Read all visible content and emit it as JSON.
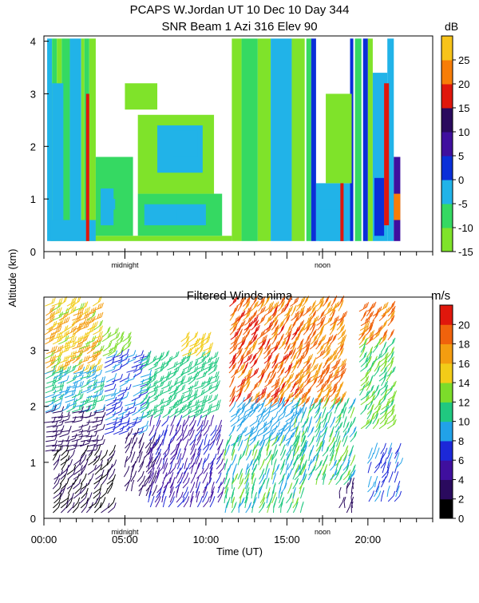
{
  "header": {
    "title_line1": "PCAPS W.Jordan UT  10 Dec 10 Day 344",
    "title_line2": "SNR Beam 1 Azi 316 Elev 90"
  },
  "shared_axes": {
    "ylabel": "Altitude (km)",
    "xlabel": "Time (UT)",
    "xtick_labels": [
      "00:00",
      "05:00",
      "10:00",
      "15:00",
      "20:00"
    ],
    "xticks_hours": [
      0,
      5,
      10,
      15,
      20
    ],
    "xlim_hours": [
      0,
      24
    ],
    "annotations": [
      {
        "label": "midnight",
        "hour": 5.0
      },
      {
        "label": "noon",
        "hour": 17.2
      }
    ]
  },
  "chart_data": [
    {
      "type": "heatmap",
      "title": "SNR Beam 1 Azi 316 Elev 90",
      "ylabel": "Altitude (km)",
      "ylim": [
        0,
        4.1
      ],
      "ytick_labels": [
        "0",
        "1",
        "2",
        "3",
        "4"
      ],
      "yticks": [
        0,
        1,
        2,
        3,
        4
      ],
      "colorbar": {
        "unit": "dB",
        "range": [
          -15,
          30
        ],
        "tick_labels": [
          "-15",
          "-10",
          "-5",
          "0",
          "5",
          "10",
          "15",
          "20",
          "25"
        ],
        "ticks": [
          -15,
          -10,
          -5,
          0,
          5,
          10,
          15,
          20,
          25
        ],
        "colors": [
          "#7fe32a",
          "#35d962",
          "#21b3e8",
          "#0a2fd8",
          "#3f0f9e",
          "#2a0a5e",
          "#e0170c",
          "#f77d08",
          "#f7c31a"
        ]
      },
      "columns": [
        {
          "start": 0.2,
          "end": 0.5,
          "value": -2
        },
        {
          "start": 0.5,
          "end": 0.8,
          "value": -6
        },
        {
          "start": 0.8,
          "end": 1.1,
          "value": -12
        },
        {
          "start": 1.1,
          "end": 1.6,
          "value": -8
        },
        {
          "start": 1.6,
          "end": 2.3,
          "value": -4
        },
        {
          "start": 2.3,
          "end": 2.5,
          "value": -11
        },
        {
          "start": 2.5,
          "end": 2.8,
          "value": -7
        },
        {
          "start": 2.8,
          "end": 3.2,
          "value": -13
        },
        {
          "start": 11.6,
          "end": 12.2,
          "value": -12
        },
        {
          "start": 12.2,
          "end": 13.2,
          "value": -6
        },
        {
          "start": 13.2,
          "end": 14.0,
          "value": -12
        },
        {
          "start": 14.0,
          "end": 15.3,
          "value": -5
        },
        {
          "start": 15.3,
          "end": 16.1,
          "value": -11
        },
        {
          "start": 16.2,
          "end": 16.5,
          "value": -6
        },
        {
          "start": 16.5,
          "end": 16.8,
          "value": 0
        },
        {
          "start": 18.9,
          "end": 19.1,
          "value": 0
        },
        {
          "start": 19.2,
          "end": 19.6,
          "value": -6
        },
        {
          "start": 19.7,
          "end": 20.0,
          "value": 2
        },
        {
          "start": 20.0,
          "end": 20.3,
          "value": -12
        },
        {
          "start": 21.2,
          "end": 21.6,
          "value": -5
        }
      ],
      "features": [
        {
          "start": 0.4,
          "end": 3.2,
          "bottom": 0.2,
          "top": 0.6,
          "value": -1
        },
        {
          "start": 0.5,
          "end": 1.2,
          "bottom": 0.6,
          "top": 3.2,
          "value": -3
        },
        {
          "start": 2.6,
          "end": 2.8,
          "bottom": 0.2,
          "top": 3.0,
          "value": 17
        },
        {
          "start": 3.2,
          "end": 11.6,
          "bottom": 0.2,
          "top": 0.3,
          "value": -12
        },
        {
          "start": 3.2,
          "end": 5.5,
          "bottom": 0.3,
          "top": 1.8,
          "value": -10
        },
        {
          "start": 3.5,
          "end": 4.3,
          "bottom": 0.5,
          "top": 1.2,
          "value": -5
        },
        {
          "start": 4.0,
          "end": 4.4,
          "bottom": 0.8,
          "top": 1.0,
          "value": -1
        },
        {
          "start": 5.8,
          "end": 11.0,
          "bottom": 0.3,
          "top": 1.1,
          "value": -10
        },
        {
          "start": 6.2,
          "end": 10.0,
          "bottom": 0.5,
          "top": 0.9,
          "value": -5
        },
        {
          "start": 8.2,
          "end": 9.4,
          "bottom": 0.6,
          "top": 0.8,
          "value": -1
        },
        {
          "start": 5.8,
          "end": 10.5,
          "bottom": 1.1,
          "top": 2.6,
          "value": -11
        },
        {
          "start": 7.0,
          "end": 9.8,
          "bottom": 1.5,
          "top": 2.4,
          "value": -5
        },
        {
          "start": 8.0,
          "end": 9.5,
          "bottom": 1.8,
          "top": 2.3,
          "value": -1
        },
        {
          "start": 5.0,
          "end": 7.0,
          "bottom": 2.7,
          "top": 3.2,
          "value": -12
        },
        {
          "start": 16.8,
          "end": 18.9,
          "bottom": 0.2,
          "top": 1.3,
          "value": -5
        },
        {
          "start": 17.0,
          "end": 18.7,
          "bottom": 0.2,
          "top": 0.8,
          "value": -1
        },
        {
          "start": 18.3,
          "end": 18.5,
          "bottom": 0.2,
          "top": 2.1,
          "value": 17
        },
        {
          "start": 17.4,
          "end": 19.0,
          "bottom": 1.3,
          "top": 3.0,
          "value": -12
        },
        {
          "start": 20.3,
          "end": 21.2,
          "bottom": 0.2,
          "top": 3.4,
          "value": -4
        },
        {
          "start": 20.4,
          "end": 21.0,
          "bottom": 0.3,
          "top": 1.4,
          "value": 2
        },
        {
          "start": 21.0,
          "end": 21.3,
          "bottom": 0.5,
          "top": 3.2,
          "value": 17
        },
        {
          "start": 21.6,
          "end": 22.0,
          "bottom": 0.2,
          "top": 1.8,
          "value": 8
        },
        {
          "start": 21.6,
          "end": 22.0,
          "bottom": 0.6,
          "top": 1.1,
          "value": 20
        }
      ]
    },
    {
      "type": "scatter",
      "title": "Filtered Winds nima",
      "ylabel": "Altitude (km)",
      "xlabel": "Time (UT)",
      "ylim": [
        0,
        3.95
      ],
      "ytick_labels": [
        "0",
        "1",
        "2",
        "3"
      ],
      "yticks": [
        0,
        1,
        2,
        3
      ],
      "colorbar": {
        "unit": "m/s",
        "range": [
          0,
          22
        ],
        "tick_labels": [
          "0",
          "2",
          "4",
          "6",
          "8",
          "10",
          "12",
          "14",
          "16",
          "18",
          "20"
        ],
        "ticks": [
          0,
          2,
          4,
          6,
          8,
          10,
          12,
          14,
          16,
          18,
          20
        ],
        "colors": [
          "#000000",
          "#2a0a5e",
          "#3f0f9e",
          "#1c28d8",
          "#21a2e8",
          "#20c880",
          "#7cdc2a",
          "#f2cc18",
          "#f49d10",
          "#f0620c",
          "#e0170c"
        ]
      },
      "wind_groups": [
        {
          "x": [
            0.1,
            3.1
          ],
          "alt": [
            2.6,
            3.85
          ],
          "speed": [
            13,
            18
          ],
          "direction": 240
        },
        {
          "x": [
            0.1,
            3.1
          ],
          "alt": [
            1.9,
            2.6
          ],
          "speed": [
            8,
            11
          ],
          "direction": 250
        },
        {
          "x": [
            0.1,
            3.4
          ],
          "alt": [
            1.2,
            1.9
          ],
          "speed": [
            2,
            4
          ],
          "direction": 265
        },
        {
          "x": [
            0.6,
            4.2
          ],
          "alt": [
            0.1,
            1.2
          ],
          "speed": [
            1,
            3
          ],
          "direction": 215
        },
        {
          "x": [
            3.6,
            5.0
          ],
          "alt": [
            2.9,
            3.3
          ],
          "speed": [
            12,
            13
          ],
          "direction": 230
        },
        {
          "x": [
            3.8,
            6.0
          ],
          "alt": [
            1.5,
            2.9
          ],
          "speed": [
            6,
            9
          ],
          "direction": 245
        },
        {
          "x": [
            5.0,
            7.0
          ],
          "alt": [
            0.4,
            1.5
          ],
          "speed": [
            2,
            4
          ],
          "direction": 200
        },
        {
          "x": [
            6.0,
            10.5
          ],
          "alt": [
            1.8,
            2.9
          ],
          "speed": [
            10,
            12
          ],
          "direction": 235
        },
        {
          "x": [
            8.5,
            10.0
          ],
          "alt": [
            2.9,
            3.2
          ],
          "speed": [
            14,
            15
          ],
          "direction": 230
        },
        {
          "x": [
            6.5,
            11.0
          ],
          "alt": [
            0.2,
            1.7
          ],
          "speed": [
            4,
            7
          ],
          "direction": 200
        },
        {
          "x": [
            11.5,
            15.5
          ],
          "alt": [
            2.0,
            3.85
          ],
          "speed": [
            17,
            21
          ],
          "direction": 215
        },
        {
          "x": [
            11.5,
            15.5
          ],
          "alt": [
            1.3,
            2.0
          ],
          "speed": [
            8,
            10
          ],
          "direction": 220
        },
        {
          "x": [
            11.2,
            16.0
          ],
          "alt": [
            0.1,
            1.3
          ],
          "speed": [
            9,
            13
          ],
          "direction": 195
        },
        {
          "x": [
            15.6,
            18.5
          ],
          "alt": [
            2.0,
            3.85
          ],
          "speed": [
            16,
            20
          ],
          "direction": 215
        },
        {
          "x": [
            15.5,
            19.0
          ],
          "alt": [
            0.6,
            2.0
          ],
          "speed": [
            9,
            13
          ],
          "direction": 200
        },
        {
          "x": [
            18.2,
            19.2
          ],
          "alt": [
            0.1,
            0.6
          ],
          "speed": [
            2,
            4
          ],
          "direction": 190
        },
        {
          "x": [
            19.5,
            21.5
          ],
          "alt": [
            3.1,
            3.7
          ],
          "speed": [
            17,
            20
          ],
          "direction": 220
        },
        {
          "x": [
            19.5,
            21.5
          ],
          "alt": [
            1.6,
            3.1
          ],
          "speed": [
            11,
            13
          ],
          "direction": 215
        },
        {
          "x": [
            20.0,
            21.8
          ],
          "alt": [
            0.3,
            1.2
          ],
          "speed": [
            7,
            9
          ],
          "direction": 200
        }
      ]
    }
  ]
}
